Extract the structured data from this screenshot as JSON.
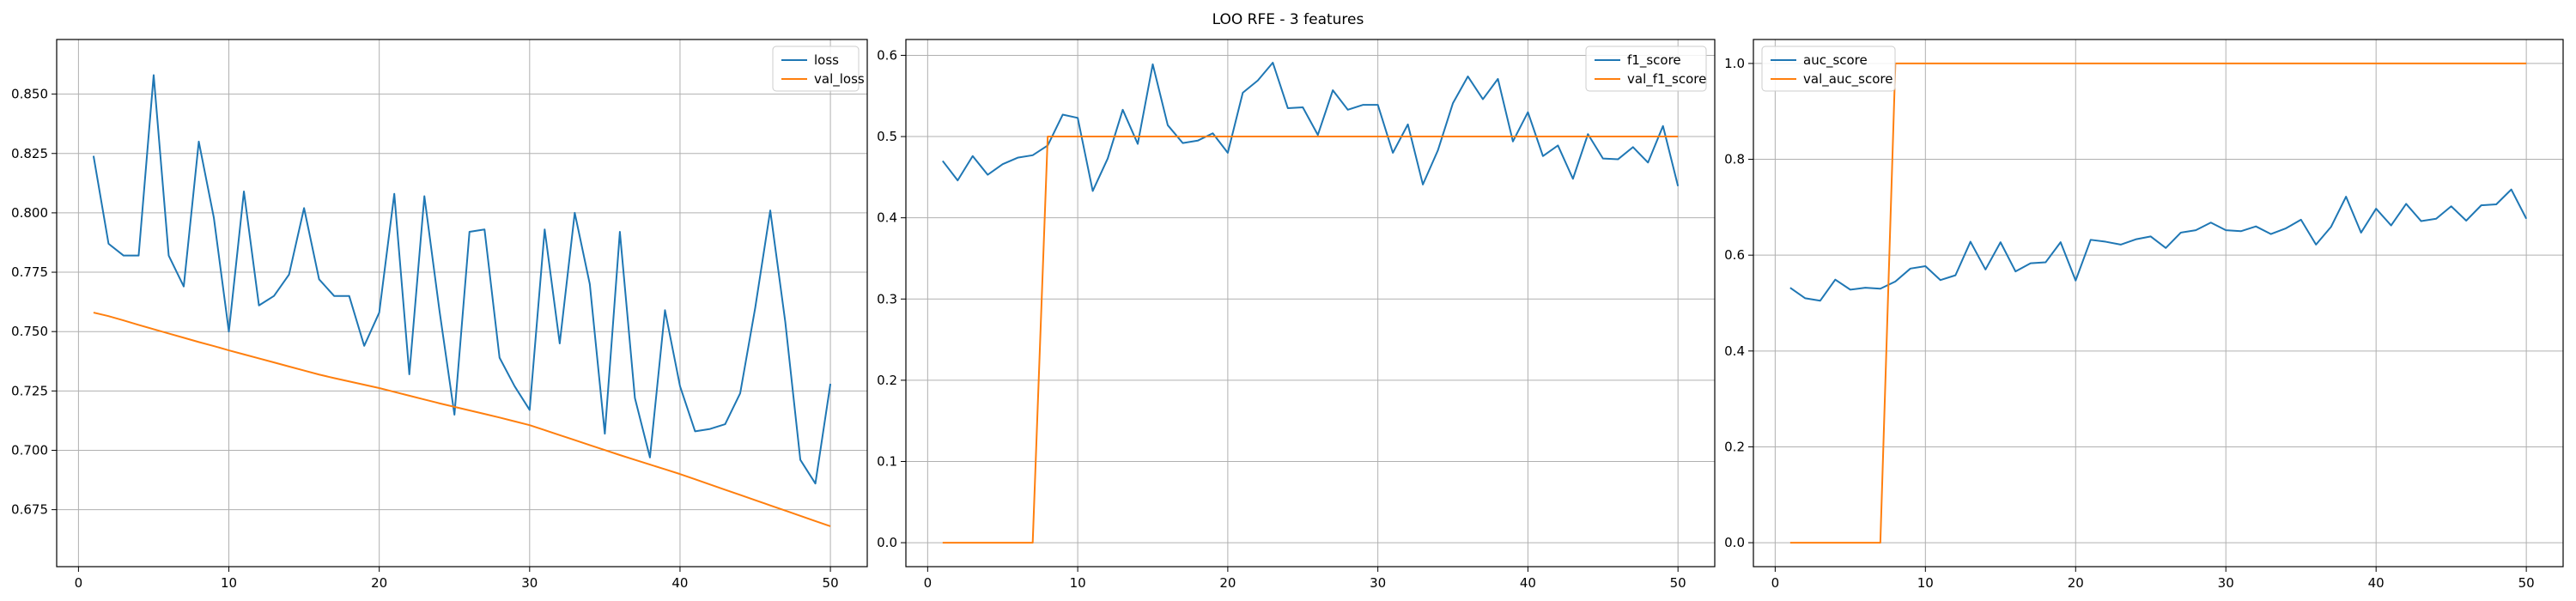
{
  "suptitle": "LOO RFE - 3 features",
  "colors": {
    "series1": "#1f77b4",
    "series2": "#ff7f0e",
    "grid": "#b0b0b0",
    "axis": "#000000"
  },
  "chart_data": [
    {
      "type": "line",
      "x": [
        1,
        2,
        3,
        4,
        5,
        6,
        7,
        8,
        9,
        10,
        11,
        12,
        13,
        14,
        15,
        16,
        17,
        18,
        19,
        20,
        21,
        22,
        23,
        24,
        25,
        26,
        27,
        28,
        29,
        30,
        31,
        32,
        33,
        34,
        35,
        36,
        37,
        38,
        39,
        40,
        41,
        42,
        43,
        44,
        45,
        46,
        47,
        48,
        49,
        50
      ],
      "xticks": [
        0,
        10,
        20,
        30,
        40,
        50
      ],
      "yticks": [
        0.675,
        0.7,
        0.725,
        0.75,
        0.775,
        0.8,
        0.825,
        0.85
      ],
      "ytick_labels": [
        "0.675",
        "0.700",
        "0.725",
        "0.750",
        "0.775",
        "0.800",
        "0.825",
        "0.850"
      ],
      "xlim": [
        -1.45,
        52.45
      ],
      "ylim": [
        0.651,
        0.873
      ],
      "grid": true,
      "legend_position": "upper right",
      "series": [
        {
          "name": "loss",
          "color": "#1f77b4",
          "values": [
            0.824,
            0.787,
            0.782,
            0.782,
            0.858,
            0.782,
            0.769,
            0.83,
            0.798,
            0.75,
            0.809,
            0.761,
            0.765,
            0.774,
            0.802,
            0.772,
            0.765,
            0.765,
            0.744,
            0.758,
            0.808,
            0.732,
            0.807,
            0.759,
            0.715,
            0.792,
            0.793,
            0.739,
            0.727,
            0.717,
            0.793,
            0.745,
            0.8,
            0.77,
            0.707,
            0.792,
            0.722,
            0.697,
            0.759,
            0.727,
            0.708,
            0.709,
            0.711,
            0.724,
            0.76,
            0.801,
            0.754,
            0.696,
            0.686,
            0.728
          ]
        },
        {
          "name": "val_loss",
          "color": "#ff7f0e",
          "values": [
            0.758,
            0.7565,
            0.7547,
            0.7528,
            0.751,
            0.7492,
            0.7474,
            0.7456,
            0.7439,
            0.7421,
            0.7404,
            0.7387,
            0.737,
            0.7353,
            0.7336,
            0.7319,
            0.7304,
            0.729,
            0.7276,
            0.7262,
            0.7246,
            0.723,
            0.7214,
            0.7198,
            0.7183,
            0.7168,
            0.7153,
            0.7138,
            0.7122,
            0.7106,
            0.7085,
            0.7064,
            0.7043,
            0.7022,
            0.7001,
            0.698,
            0.696,
            0.694,
            0.692,
            0.69,
            0.6878,
            0.6856,
            0.6834,
            0.6812,
            0.679,
            0.6768,
            0.6746,
            0.6724,
            0.6702,
            0.668
          ]
        }
      ]
    },
    {
      "type": "line",
      "x": [
        1,
        2,
        3,
        4,
        5,
        6,
        7,
        8,
        9,
        10,
        11,
        12,
        13,
        14,
        15,
        16,
        17,
        18,
        19,
        20,
        21,
        22,
        23,
        24,
        25,
        26,
        27,
        28,
        29,
        30,
        31,
        32,
        33,
        34,
        35,
        36,
        37,
        38,
        39,
        40,
        41,
        42,
        43,
        44,
        45,
        46,
        47,
        48,
        49,
        50
      ],
      "xticks": [
        0,
        10,
        20,
        30,
        40,
        50
      ],
      "yticks": [
        0.0,
        0.1,
        0.2,
        0.3,
        0.4,
        0.5,
        0.6
      ],
      "ytick_labels": [
        "0.0",
        "0.1",
        "0.2",
        "0.3",
        "0.4",
        "0.5",
        "0.6"
      ],
      "xlim": [
        -1.45,
        52.45
      ],
      "ylim": [
        -0.0295,
        0.6195
      ],
      "grid": true,
      "legend_position": "upper right",
      "series": [
        {
          "name": "f1_score",
          "color": "#1f77b4",
          "values": [
            0.47,
            0.446,
            0.476,
            0.453,
            0.466,
            0.474,
            0.477,
            0.489,
            0.527,
            0.523,
            0.433,
            0.473,
            0.533,
            0.491,
            0.589,
            0.514,
            0.492,
            0.495,
            0.504,
            0.48,
            0.554,
            0.569,
            0.591,
            0.535,
            0.536,
            0.502,
            0.557,
            0.533,
            0.539,
            0.539,
            0.48,
            0.515,
            0.441,
            0.483,
            0.541,
            0.574,
            0.546,
            0.571,
            0.494,
            0.53,
            0.476,
            0.489,
            0.448,
            0.503,
            0.473,
            0.472,
            0.487,
            0.468,
            0.513,
            0.439
          ]
        },
        {
          "name": "val_f1_score",
          "color": "#ff7f0e",
          "values": [
            0,
            0,
            0,
            0,
            0,
            0,
            0,
            0.5,
            0.5,
            0.5,
            0.5,
            0.5,
            0.5,
            0.5,
            0.5,
            0.5,
            0.5,
            0.5,
            0.5,
            0.5,
            0.5,
            0.5,
            0.5,
            0.5,
            0.5,
            0.5,
            0.5,
            0.5,
            0.5,
            0.5,
            0.5,
            0.5,
            0.5,
            0.5,
            0.5,
            0.5,
            0.5,
            0.5,
            0.5,
            0.5,
            0.5,
            0.5,
            0.5,
            0.5,
            0.5,
            0.5,
            0.5,
            0.5,
            0.5,
            0.5
          ]
        }
      ]
    },
    {
      "type": "line",
      "x": [
        1,
        2,
        3,
        4,
        5,
        6,
        7,
        8,
        9,
        10,
        11,
        12,
        13,
        14,
        15,
        16,
        17,
        18,
        19,
        20,
        21,
        22,
        23,
        24,
        25,
        26,
        27,
        28,
        29,
        30,
        31,
        32,
        33,
        34,
        35,
        36,
        37,
        38,
        39,
        40,
        41,
        42,
        43,
        44,
        45,
        46,
        47,
        48,
        49,
        50
      ],
      "xticks": [
        0,
        10,
        20,
        30,
        40,
        50
      ],
      "yticks": [
        0.0,
        0.2,
        0.4,
        0.6,
        0.8,
        1.0
      ],
      "ytick_labels": [
        "0.0",
        "0.2",
        "0.4",
        "0.6",
        "0.8",
        "1.0"
      ],
      "xlim": [
        -1.45,
        52.45
      ],
      "ylim": [
        -0.05,
        1.05
      ],
      "grid": true,
      "legend_position": "upper left",
      "series": [
        {
          "name": "auc_score",
          "color": "#1f77b4",
          "values": [
            0.532,
            0.51,
            0.505,
            0.549,
            0.528,
            0.532,
            0.53,
            0.545,
            0.572,
            0.577,
            0.548,
            0.558,
            0.628,
            0.57,
            0.627,
            0.566,
            0.583,
            0.585,
            0.627,
            0.547,
            0.632,
            0.628,
            0.622,
            0.633,
            0.639,
            0.615,
            0.647,
            0.652,
            0.668,
            0.652,
            0.65,
            0.66,
            0.644,
            0.656,
            0.674,
            0.622,
            0.659,
            0.722,
            0.647,
            0.697,
            0.662,
            0.707,
            0.671,
            0.676,
            0.702,
            0.672,
            0.704,
            0.706,
            0.737,
            0.676
          ]
        },
        {
          "name": "val_auc_score",
          "color": "#ff7f0e",
          "values": [
            0,
            0,
            0,
            0,
            0,
            0,
            0,
            1,
            1,
            1,
            1,
            1,
            1,
            1,
            1,
            1,
            1,
            1,
            1,
            1,
            1,
            1,
            1,
            1,
            1,
            1,
            1,
            1,
            1,
            1,
            1,
            1,
            1,
            1,
            1,
            1,
            1,
            1,
            1,
            1,
            1,
            1,
            1,
            1,
            1,
            1,
            1,
            1,
            1,
            1
          ]
        }
      ]
    }
  ]
}
